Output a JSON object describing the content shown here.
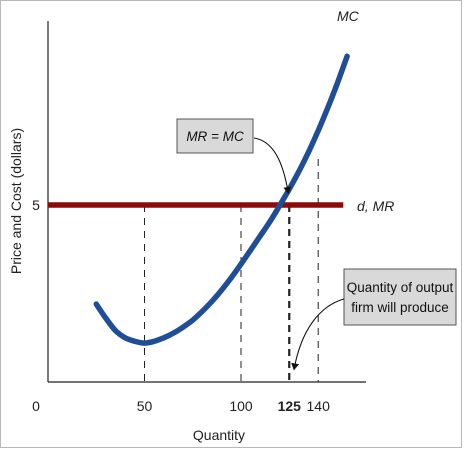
{
  "chart_data": {
    "type": "line",
    "title": "",
    "xlabel": "Quantity",
    "ylabel": "Price and Cost (dollars)",
    "xlim": [
      0,
      175
    ],
    "ylim": [
      0,
      9
    ],
    "x_ticks": [
      {
        "value": 0,
        "label": "0",
        "bold": false
      },
      {
        "value": 50,
        "label": "50",
        "bold": false
      },
      {
        "value": 100,
        "label": "100",
        "bold": false
      },
      {
        "value": 125,
        "label": "125",
        "bold": true
      },
      {
        "value": 140,
        "label": "140",
        "bold": false
      }
    ],
    "y_ticks": [
      {
        "value": 5,
        "label": "5"
      }
    ],
    "grid": false,
    "series": [
      {
        "name": "MC",
        "color": "#1f4e96",
        "x": [
          25,
          30,
          35,
          40,
          45,
          50,
          55,
          60,
          65,
          70,
          75,
          80,
          85,
          90,
          95,
          100,
          105,
          110,
          115,
          120,
          125,
          130,
          135,
          140,
          145,
          150,
          155
        ],
        "y": [
          2.2,
          1.8,
          1.45,
          1.25,
          1.15,
          1.1,
          1.15,
          1.25,
          1.38,
          1.55,
          1.75,
          2.0,
          2.28,
          2.6,
          2.95,
          3.33,
          3.73,
          4.13,
          4.53,
          4.98,
          5.45,
          5.95,
          6.5,
          7.1,
          7.75,
          8.45,
          9.2
        ]
      },
      {
        "name": "d, MR",
        "color": "#8b0a0a",
        "x": [
          0,
          153
        ],
        "y": [
          5,
          5
        ]
      }
    ],
    "dashed_lines": [
      {
        "x": 50,
        "y_top": 5,
        "bold": false
      },
      {
        "x": 100,
        "y_top": 5,
        "bold": false
      },
      {
        "x": 125,
        "y_top": 5,
        "bold": true
      },
      {
        "x": 140,
        "y_top": 6.3,
        "bold": false
      }
    ],
    "annotations": [
      {
        "text": "MR = MC",
        "points_to": {
          "x": 125,
          "y": 5
        }
      },
      {
        "text_lines": [
          "Quantity of output",
          "firm will produce"
        ],
        "points_to": {
          "x": 128,
          "y": 0.3
        }
      }
    ]
  }
}
